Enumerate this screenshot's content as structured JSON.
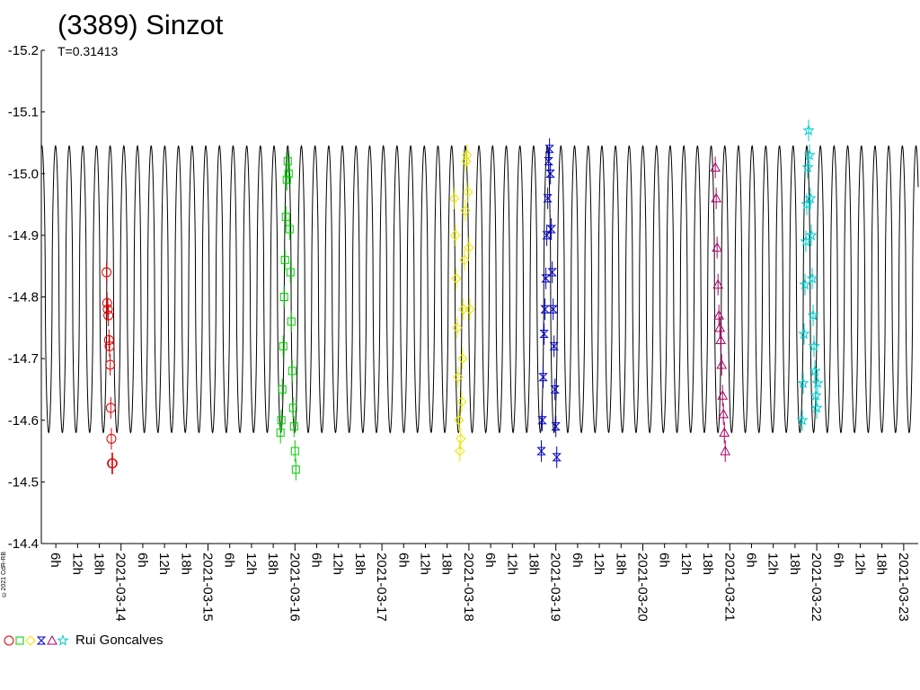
{
  "chart_data": {
    "type": "scatter",
    "title": "(3389) Sinzot",
    "subtitle": "T=0.31413",
    "period_days": 0.31413,
    "ylim": [
      -15.2,
      -14.4
    ],
    "y_reversed": true,
    "y_ticks": [
      "-15.2",
      "-15.1",
      "-15.0",
      "-14.9",
      "-14.8",
      "-14.7",
      "-14.6",
      "-14.5",
      "-14.4"
    ],
    "y_tick_values": [
      -15.2,
      -15.1,
      -15.0,
      -14.9,
      -14.8,
      -14.7,
      -14.6,
      -14.5,
      -14.4
    ],
    "xlim": [
      "2021-03-13T02:00",
      "2021-03-23T04:00"
    ],
    "x_date_ticks": [
      "2021-03-14",
      "2021-03-15",
      "2021-03-16",
      "2021-03-17",
      "2021-03-18",
      "2021-03-19",
      "2021-03-20",
      "2021-03-21",
      "2021-03-22"
    ],
    "x_hour_labels": [
      "6h",
      "12h",
      "18h"
    ],
    "fit_curve": {
      "min": -15.045,
      "max": -14.58,
      "color": "#000000"
    },
    "legend": {
      "name": "Rui Goncalves",
      "placement": "bottom-left"
    },
    "series": [
      {
        "name": "Rui Goncalves",
        "marker": "circle",
        "color": "#e00000",
        "x": [
          "2021-03-13T20:00",
          "2021-03-13T20:10",
          "2021-03-13T20:20",
          "2021-03-13T20:30",
          "2021-03-13T20:40",
          "2021-03-13T20:50",
          "2021-03-13T21:00",
          "2021-03-13T21:10",
          "2021-03-13T21:20",
          "2021-03-13T21:30",
          "2021-03-13T21:40"
        ],
        "y": [
          -14.84,
          -14.79,
          -14.78,
          -14.77,
          -14.73,
          -14.72,
          -14.69,
          -14.62,
          -14.57,
          -14.53,
          -14.53
        ]
      },
      {
        "name": "Rui Goncalves",
        "marker": "square",
        "color": "#00cc00",
        "x": [
          "2021-03-15T20:00",
          "2021-03-15T20:15",
          "2021-03-15T20:30",
          "2021-03-15T20:45",
          "2021-03-15T21:00",
          "2021-03-15T21:15",
          "2021-03-15T21:30",
          "2021-03-15T21:45",
          "2021-03-15T22:00",
          "2021-03-15T22:15",
          "2021-03-15T22:30",
          "2021-03-15T22:45",
          "2021-03-15T23:00",
          "2021-03-15T23:15",
          "2021-03-15T23:30",
          "2021-03-15T23:45",
          "2021-03-16T00:00",
          "2021-03-16T00:15"
        ],
        "y": [
          -14.58,
          -14.6,
          -14.65,
          -14.72,
          -14.8,
          -14.86,
          -14.93,
          -14.99,
          -15.02,
          -15.0,
          -14.91,
          -14.84,
          -14.76,
          -14.68,
          -14.62,
          -14.59,
          -14.55,
          -14.52
        ]
      },
      {
        "name": "Rui Goncalves",
        "marker": "diamond",
        "color": "#e8e800",
        "x": [
          "2021-03-17T20:00",
          "2021-03-17T20:15",
          "2021-03-17T20:30",
          "2021-03-17T20:45",
          "2021-03-17T21:00",
          "2021-03-17T21:15",
          "2021-03-17T21:30",
          "2021-03-17T21:45",
          "2021-03-17T22:00",
          "2021-03-17T22:15",
          "2021-03-17T22:30",
          "2021-03-17T22:45",
          "2021-03-17T23:00",
          "2021-03-17T23:15",
          "2021-03-17T23:30",
          "2021-03-17T23:45",
          "2021-03-18T00:00",
          "2021-03-18T00:15"
        ],
        "y": [
          -14.96,
          -14.9,
          -14.83,
          -14.75,
          -14.67,
          -14.6,
          -14.55,
          -14.57,
          -14.63,
          -14.7,
          -14.78,
          -14.86,
          -14.94,
          -15.02,
          -15.03,
          -14.97,
          -14.88,
          -14.78
        ]
      },
      {
        "name": "Rui Goncalves",
        "marker": "hourglass",
        "color": "#0000c0",
        "x": [
          "2021-03-18T20:00",
          "2021-03-18T20:15",
          "2021-03-18T20:30",
          "2021-03-18T20:45",
          "2021-03-18T21:00",
          "2021-03-18T21:15",
          "2021-03-18T21:30",
          "2021-03-18T21:45",
          "2021-03-18T22:00",
          "2021-03-18T22:15",
          "2021-03-18T22:30",
          "2021-03-18T22:45",
          "2021-03-18T23:00",
          "2021-03-18T23:15",
          "2021-03-18T23:30",
          "2021-03-18T23:45",
          "2021-03-19T00:00",
          "2021-03-19T00:15"
        ],
        "y": [
          -14.55,
          -14.6,
          -14.67,
          -14.74,
          -14.78,
          -14.83,
          -14.9,
          -14.96,
          -15.02,
          -15.04,
          -15.0,
          -14.91,
          -14.84,
          -14.78,
          -14.72,
          -14.65,
          -14.59,
          -14.54
        ]
      },
      {
        "name": "Rui Goncalves",
        "marker": "triangle",
        "color": "#aa0066",
        "x": [
          "2021-03-20T20:00",
          "2021-03-20T20:15",
          "2021-03-20T20:30",
          "2021-03-20T20:45",
          "2021-03-20T21:00",
          "2021-03-20T21:15",
          "2021-03-20T21:30",
          "2021-03-20T21:45",
          "2021-03-20T22:00",
          "2021-03-20T22:15",
          "2021-03-20T22:30",
          "2021-03-20T22:45"
        ],
        "y": [
          -15.01,
          -14.96,
          -14.88,
          -14.82,
          -14.77,
          -14.75,
          -14.73,
          -14.69,
          -14.64,
          -14.61,
          -14.58,
          -14.55
        ]
      },
      {
        "name": "Rui Goncalves",
        "marker": "star",
        "color": "#00cccc",
        "x": [
          "2021-03-21T20:00",
          "2021-03-21T20:15",
          "2021-03-21T20:30",
          "2021-03-21T20:45",
          "2021-03-21T21:00",
          "2021-03-21T21:15",
          "2021-03-21T21:30",
          "2021-03-21T21:45",
          "2021-03-21T22:00",
          "2021-03-21T22:15",
          "2021-03-21T22:30",
          "2021-03-21T22:45",
          "2021-03-21T23:00",
          "2021-03-21T23:15",
          "2021-03-21T23:30",
          "2021-03-21T23:45",
          "2021-03-22T00:00",
          "2021-03-22T00:15"
        ],
        "y": [
          -14.6,
          -14.66,
          -14.74,
          -14.82,
          -14.89,
          -14.95,
          -15.01,
          -15.07,
          -15.03,
          -14.96,
          -14.9,
          -14.83,
          -14.77,
          -14.72,
          -14.68,
          -14.64,
          -14.62,
          -14.66
        ]
      }
    ]
  },
  "watermark": "©2021 CdR-RB"
}
